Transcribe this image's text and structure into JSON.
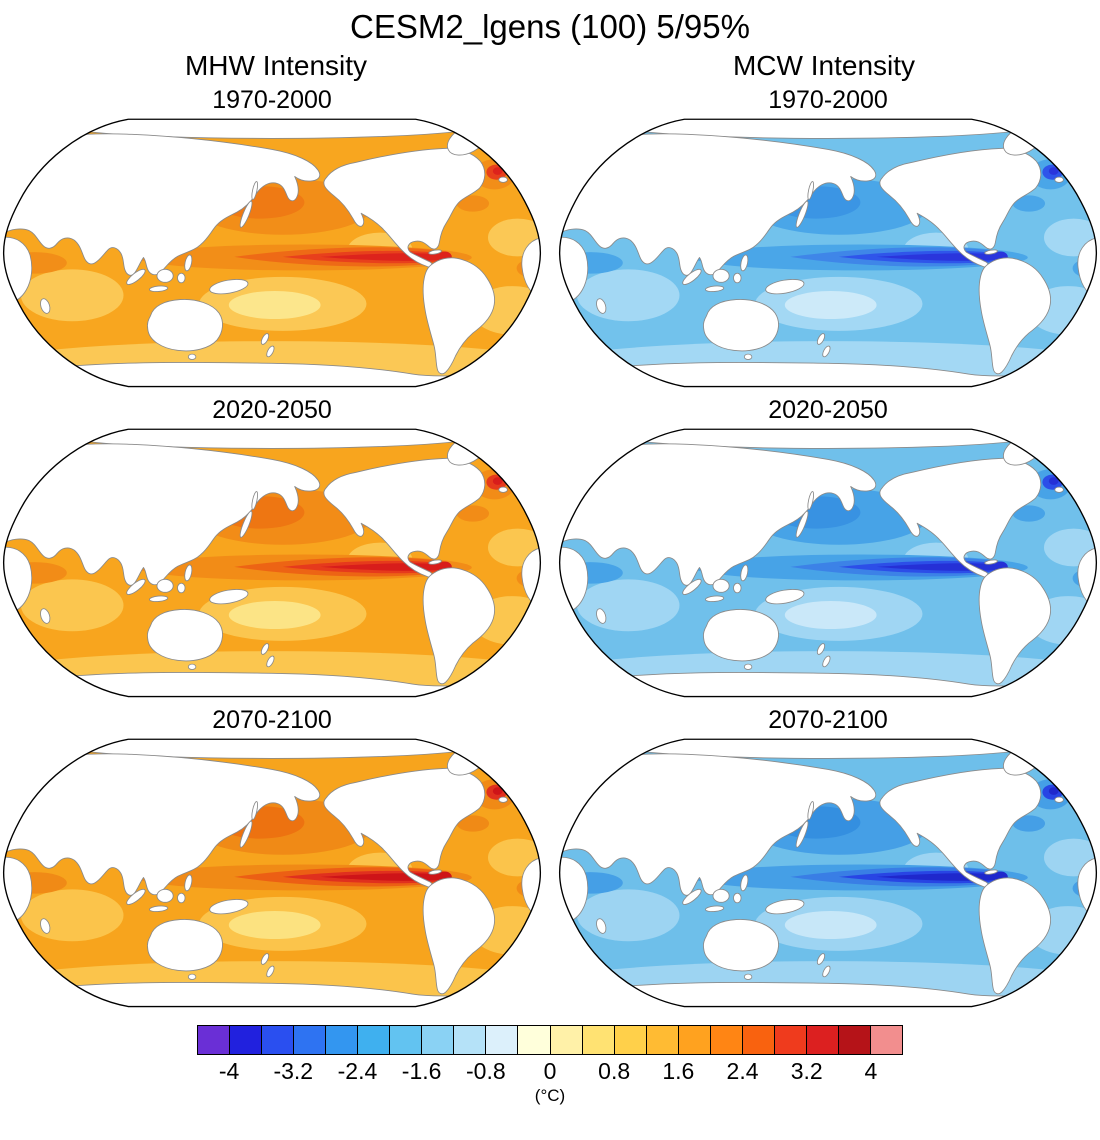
{
  "title": "CESM2_lgens (100) 5/95%",
  "columns": [
    {
      "label": "MHW Intensity"
    },
    {
      "label": "MCW Intensity"
    }
  ],
  "panels": [
    {
      "column": "MHW Intensity",
      "period": "1970-2000",
      "type": "warm",
      "palette": {
        "ocean_base": "#F8A61F",
        "ocean_light": "#FBC855",
        "ocean_pale": "#FCE68C",
        "ocean_deep": "#F28E18",
        "ocean_deeper": "#EF7A14",
        "tongue_outer": "#EE6A16",
        "tongue_mid": "#E8401C",
        "tongue_core": "#DD231C"
      }
    },
    {
      "column": "MCW Intensity",
      "period": "1970-2000",
      "type": "cold",
      "palette": {
        "ocean_base": "#72C2EC",
        "ocean_light": "#A3D8F4",
        "ocean_pale": "#CDEAF9",
        "ocean_deep": "#4AA6E8",
        "ocean_deeper": "#3B95E4",
        "tongue_outer": "#3F86E8",
        "tongue_mid": "#2F55EA",
        "tongue_core": "#2A35DC"
      }
    },
    {
      "column": "MHW Intensity",
      "period": "2020-2050",
      "type": "warm",
      "palette": {
        "ocean_base": "#F8A51E",
        "ocean_light": "#FBC64F",
        "ocean_pale": "#FCE486",
        "ocean_deep": "#F28C17",
        "ocean_deeper": "#EE7612",
        "tongue_outer": "#ED6414",
        "tongue_mid": "#E63A1C",
        "tongue_core": "#D81D1B"
      }
    },
    {
      "column": "MCW Intensity",
      "period": "2020-2050",
      "type": "cold",
      "palette": {
        "ocean_base": "#70C0EB",
        "ocean_light": "#A0D6F3",
        "ocean_pale": "#CAE8F9",
        "ocean_deep": "#47A3E7",
        "ocean_deeper": "#3892E2",
        "tongue_outer": "#3C82E7",
        "tongue_mid": "#2C4EE8",
        "tongue_core": "#2530D6"
      }
    },
    {
      "column": "MHW Intensity",
      "period": "2070-2100",
      "type": "warm",
      "palette": {
        "ocean_base": "#F7A41D",
        "ocean_light": "#FBC44B",
        "ocean_pale": "#FCE280",
        "ocean_deep": "#F08A16",
        "ocean_deeper": "#ED7210",
        "tongue_outer": "#EC5F14",
        "tongue_mid": "#E0301E",
        "tongue_core": "#CE1418"
      }
    },
    {
      "column": "MCW Intensity",
      "period": "2070-2100",
      "type": "cold",
      "palette": {
        "ocean_base": "#6EBFEA",
        "ocean_light": "#9DD4F2",
        "ocean_pale": "#C7E7F8",
        "ocean_deep": "#459FE6",
        "ocean_deeper": "#348FE0",
        "tongue_outer": "#397EE5",
        "tongue_mid": "#2845E4",
        "tongue_core": "#1F28CC"
      }
    }
  ],
  "colorbar": {
    "min": -4.4,
    "max": 4.4,
    "step": 0.4,
    "unit": "(°C)",
    "ticks": [
      "-4",
      "-3.2",
      "-2.4",
      "-1.6",
      "-0.8",
      "0",
      "0.8",
      "1.6",
      "2.4",
      "3.2",
      "4"
    ],
    "colors": [
      "#6A2FD6",
      "#2121DE",
      "#2A4FF0",
      "#2E73F2",
      "#3396F0",
      "#3FB0EF",
      "#62C3F1",
      "#8AD2F4",
      "#B5E2F8",
      "#DCF0FB",
      "#FFFFDB",
      "#FFF1A8",
      "#FFE272",
      "#FFD04A",
      "#FFBB33",
      "#FFA21F",
      "#FF8514",
      "#F9620F",
      "#EF3B1D",
      "#DC2020",
      "#B51318",
      "#F28E8E"
    ]
  },
  "chart_data": {
    "type": "heatmap",
    "title": "CESM2_lgens (100) 5/95%",
    "subtitle": "Marine heatwave (95th pct) and marine cold wave (5th pct) SST-anomaly intensity maps",
    "columns": [
      "MHW Intensity",
      "MCW Intensity"
    ],
    "rows": [
      "1970-2000",
      "2020-2050",
      "2070-2100"
    ],
    "projection": "Robinson, Pacific-centered",
    "units": "°C",
    "colorbar_range": [
      -4,
      4
    ],
    "colorbar_tick_step": 0.8,
    "legend_position": "bottom",
    "panels": [
      {
        "column": "MHW Intensity",
        "period": "1970-2000",
        "regional_values": {
          "global_ocean_typical": 1.0,
          "subtropical_gyres": 0.8,
          "north_pacific_kuroshio": 2.0,
          "northwest_atlantic_subpolar": 2.4,
          "equatorial_east_pacific_core": 3.0,
          "southern_ocean": 0.8
        }
      },
      {
        "column": "MCW Intensity",
        "period": "1970-2000",
        "regional_values": {
          "global_ocean_typical": -1.0,
          "subtropical_gyres": -0.8,
          "north_pacific_kuroshio": -2.0,
          "northwest_atlantic_subpolar": -2.4,
          "equatorial_east_pacific_core": -3.0,
          "southern_ocean": -0.8
        }
      },
      {
        "column": "MHW Intensity",
        "period": "2020-2050",
        "regional_values": {
          "global_ocean_typical": 1.1,
          "subtropical_gyres": 0.8,
          "north_pacific_kuroshio": 2.2,
          "northwest_atlantic_subpolar": 2.6,
          "equatorial_east_pacific_core": 3.2,
          "southern_ocean": 0.8
        }
      },
      {
        "column": "MCW Intensity",
        "period": "2020-2050",
        "regional_values": {
          "global_ocean_typical": -1.1,
          "subtropical_gyres": -0.8,
          "north_pacific_kuroshio": -2.2,
          "northwest_atlantic_subpolar": -2.6,
          "equatorial_east_pacific_core": -3.2,
          "southern_ocean": -0.8
        }
      },
      {
        "column": "MHW Intensity",
        "period": "2070-2100",
        "regional_values": {
          "global_ocean_typical": 1.2,
          "subtropical_gyres": 0.9,
          "north_pacific_kuroshio": 2.3,
          "northwest_atlantic_subpolar": 2.6,
          "equatorial_east_pacific_core": 3.4,
          "southern_ocean": 0.9
        }
      },
      {
        "column": "MCW Intensity",
        "period": "2070-2100",
        "regional_values": {
          "global_ocean_typical": -1.2,
          "subtropical_gyres": -0.9,
          "north_pacific_kuroshio": -2.3,
          "northwest_atlantic_subpolar": -2.6,
          "equatorial_east_pacific_core": -3.6,
          "southern_ocean": -0.9
        }
      }
    ]
  }
}
